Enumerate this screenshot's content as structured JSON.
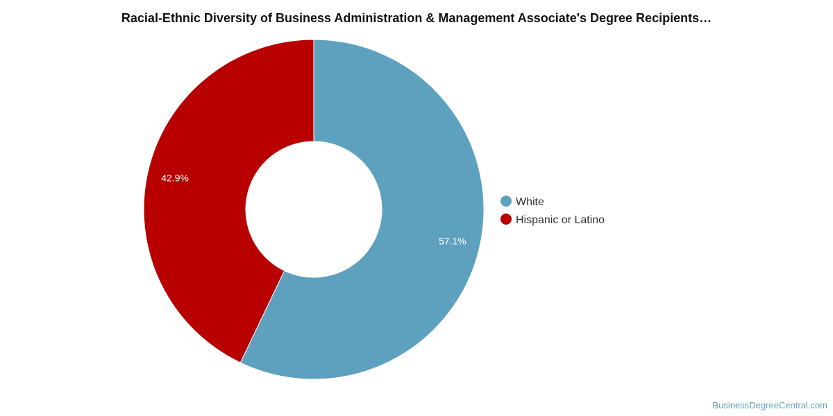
{
  "chart_data": {
    "type": "pie",
    "title": "Racial-Ethnic Diversity of Business Administration & Management Associate's Degree Recipients…",
    "categories": [
      "White",
      "Hispanic or Latino"
    ],
    "values": [
      57.1,
      42.9
    ],
    "labels": [
      "57.1%",
      "42.9%"
    ],
    "colors": [
      "#5ea1bf",
      "#b80000"
    ],
    "donut": true,
    "legend_position": "right"
  },
  "credit": "BusinessDegreeCentral.com"
}
